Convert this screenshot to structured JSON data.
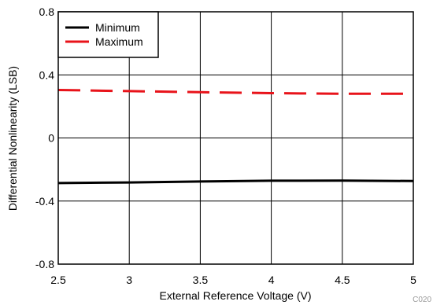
{
  "chart_data": {
    "type": "line",
    "xlabel": "External Reference Voltage (V)",
    "ylabel": "Differential Nonlinearity (LSB)",
    "xlim": [
      2.5,
      5
    ],
    "ylim": [
      -0.8,
      0.8
    ],
    "x_ticks": [
      "2.5",
      "3",
      "3.5",
      "4",
      "4.5",
      "5"
    ],
    "y_ticks": [
      "0.8",
      "0.4",
      "0",
      "-0.4",
      "-0.8"
    ],
    "grid": true,
    "legend_position": "top-left",
    "code_label": "C020",
    "series": [
      {
        "name": "Minimum",
        "color": "#000000",
        "style": "solid",
        "x": [
          2.5,
          3.0,
          3.5,
          4.0,
          4.5,
          5.0
        ],
        "y": [
          -0.286,
          -0.282,
          -0.276,
          -0.271,
          -0.27,
          -0.273
        ]
      },
      {
        "name": "Maximum",
        "color": "#e8131a",
        "style": "dashed",
        "x": [
          2.5,
          3.0,
          3.5,
          4.0,
          4.5,
          5.0
        ],
        "y": [
          0.304,
          0.297,
          0.29,
          0.284,
          0.28,
          0.28
        ]
      }
    ]
  }
}
